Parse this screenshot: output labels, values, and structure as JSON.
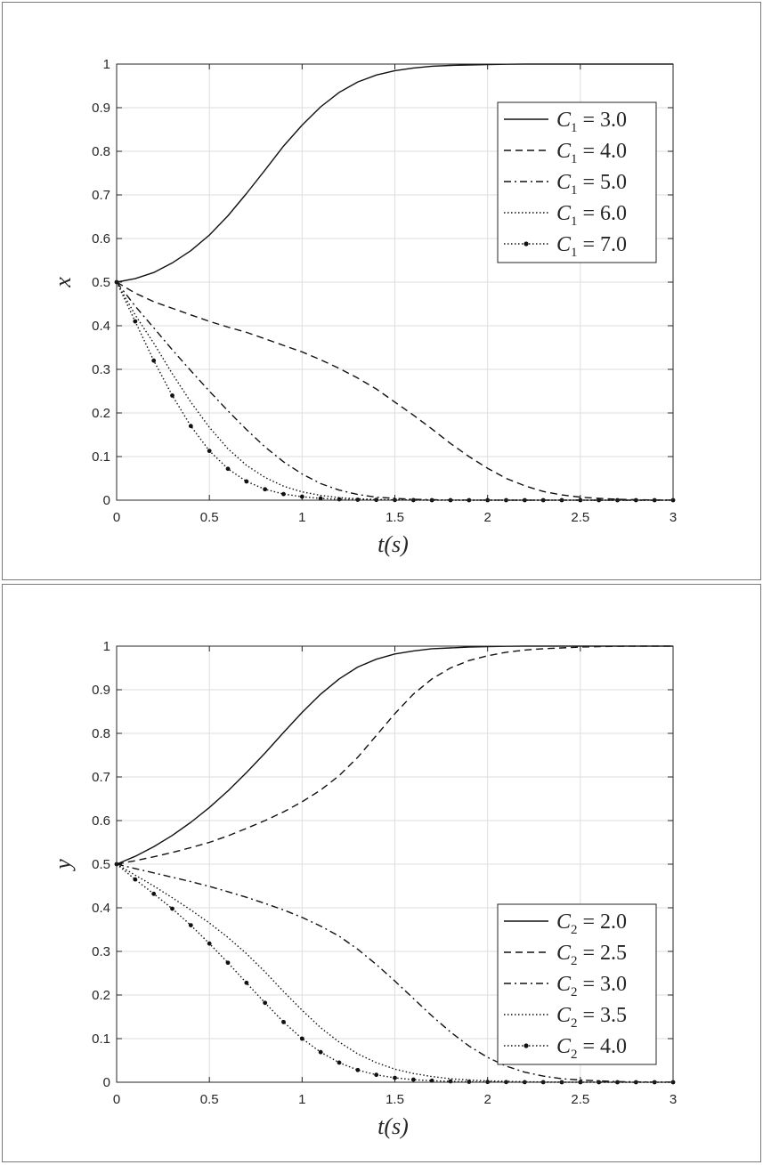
{
  "chart_data": [
    {
      "type": "line",
      "xlabel": "t(s)",
      "ylabel": "x",
      "xlim": [
        0,
        3
      ],
      "ylim": [
        0,
        1
      ],
      "grid": true,
      "legend_position": "top-right",
      "xticks": [
        "0",
        "0.5",
        "1",
        "1.5",
        "2",
        "2.5",
        "3"
      ],
      "yticks": [
        "0",
        "0.1",
        "0.2",
        "0.3",
        "0.4",
        "0.5",
        "0.6",
        "0.7",
        "0.8",
        "0.9",
        "1"
      ],
      "x": [
        0,
        0.1,
        0.2,
        0.3,
        0.4,
        0.5,
        0.6,
        0.7,
        0.8,
        0.9,
        1.0,
        1.1,
        1.2,
        1.3,
        1.4,
        1.5,
        1.6,
        1.7,
        1.8,
        1.9,
        2.0,
        2.1,
        2.2,
        2.3,
        2.4,
        2.5,
        2.6,
        2.7,
        2.8,
        2.9,
        3.0
      ],
      "series": [
        {
          "name": "C_1 = 3.0",
          "style": "solid",
          "values": [
            0.5,
            0.508,
            0.522,
            0.544,
            0.572,
            0.608,
            0.652,
            0.703,
            0.757,
            0.812,
            0.86,
            0.902,
            0.935,
            0.959,
            0.975,
            0.985,
            0.991,
            0.995,
            0.997,
            0.998,
            0.999,
            0.9995,
            1.0,
            1.0,
            1.0,
            1.0,
            1.0,
            1.0,
            1.0,
            1.0,
            1.0
          ]
        },
        {
          "name": "C_1 = 4.0",
          "style": "dashed",
          "values": [
            0.5,
            0.475,
            0.455,
            0.44,
            0.425,
            0.41,
            0.397,
            0.385,
            0.37,
            0.355,
            0.34,
            0.322,
            0.302,
            0.28,
            0.255,
            0.225,
            0.195,
            0.163,
            0.13,
            0.1,
            0.073,
            0.05,
            0.033,
            0.02,
            0.012,
            0.007,
            0.004,
            0.002,
            0.001,
            0.0005,
            0.0003
          ]
        },
        {
          "name": "C_1 = 5.0",
          "style": "dashdot",
          "values": [
            0.5,
            0.445,
            0.395,
            0.345,
            0.297,
            0.25,
            0.205,
            0.162,
            0.122,
            0.088,
            0.06,
            0.038,
            0.023,
            0.013,
            0.007,
            0.004,
            0.002,
            0.001,
            0.0005,
            0.0003,
            0.0002,
            0.0001,
            0,
            0,
            0,
            0,
            0,
            0,
            0,
            0,
            0
          ]
        },
        {
          "name": "C_1 = 6.0",
          "style": "dotted",
          "values": [
            0.5,
            0.425,
            0.36,
            0.29,
            0.225,
            0.167,
            0.118,
            0.08,
            0.052,
            0.032,
            0.019,
            0.011,
            0.006,
            0.003,
            0.0017,
            0.0009,
            0.0005,
            0.0003,
            0.0001,
            0,
            0,
            0,
            0,
            0,
            0,
            0,
            0,
            0,
            0,
            0,
            0
          ]
        },
        {
          "name": "C_1 = 7.0",
          "style": "dotted-marker",
          "values": [
            0.5,
            0.41,
            0.32,
            0.24,
            0.17,
            0.113,
            0.072,
            0.043,
            0.025,
            0.014,
            0.008,
            0.004,
            0.002,
            0.001,
            0.0006,
            0.0003,
            0.0001,
            0,
            0,
            0,
            0,
            0,
            0,
            0,
            0,
            0,
            0,
            0,
            0,
            0,
            0
          ]
        }
      ]
    },
    {
      "type": "line",
      "xlabel": "t(s)",
      "ylabel": "y",
      "xlim": [
        0,
        3
      ],
      "ylim": [
        0,
        1
      ],
      "grid": true,
      "legend_position": "bottom-right",
      "xticks": [
        "0",
        "0.5",
        "1",
        "1.5",
        "2",
        "2.5",
        "3"
      ],
      "yticks": [
        "0",
        "0.1",
        "0.2",
        "0.3",
        "0.4",
        "0.5",
        "0.6",
        "0.7",
        "0.8",
        "0.9",
        "1"
      ],
      "x": [
        0,
        0.1,
        0.2,
        0.3,
        0.4,
        0.5,
        0.6,
        0.7,
        0.8,
        0.9,
        1.0,
        1.1,
        1.2,
        1.3,
        1.4,
        1.5,
        1.6,
        1.7,
        1.8,
        1.9,
        2.0,
        2.1,
        2.2,
        2.3,
        2.4,
        2.5,
        2.6,
        2.7,
        2.8,
        2.9,
        3.0
      ],
      "series": [
        {
          "name": "C_2 = 2.0",
          "style": "solid",
          "values": [
            0.5,
            0.518,
            0.54,
            0.566,
            0.596,
            0.63,
            0.668,
            0.71,
            0.755,
            0.802,
            0.848,
            0.89,
            0.925,
            0.952,
            0.97,
            0.982,
            0.989,
            0.994,
            0.996,
            0.998,
            0.999,
            0.9995,
            1.0,
            1.0,
            1.0,
            1.0,
            1.0,
            1.0,
            1.0,
            1.0,
            1.0
          ]
        },
        {
          "name": "C_2 = 2.5",
          "style": "dashed",
          "values": [
            0.5,
            0.508,
            0.517,
            0.527,
            0.538,
            0.55,
            0.565,
            0.582,
            0.6,
            0.62,
            0.643,
            0.67,
            0.703,
            0.745,
            0.795,
            0.845,
            0.89,
            0.925,
            0.95,
            0.967,
            0.978,
            0.986,
            0.991,
            0.994,
            0.996,
            0.998,
            0.999,
            0.9995,
            1.0,
            1.0,
            1.0
          ]
        },
        {
          "name": "C_2 = 3.0",
          "style": "dashdot",
          "values": [
            0.5,
            0.49,
            0.48,
            0.47,
            0.46,
            0.449,
            0.437,
            0.424,
            0.41,
            0.395,
            0.378,
            0.358,
            0.335,
            0.305,
            0.27,
            0.232,
            0.192,
            0.152,
            0.115,
            0.083,
            0.057,
            0.037,
            0.023,
            0.014,
            0.008,
            0.005,
            0.003,
            0.0015,
            0.0008,
            0.0004,
            0.0002
          ]
        },
        {
          "name": "C_2 = 3.5",
          "style": "dotted",
          "values": [
            0.5,
            0.475,
            0.45,
            0.423,
            0.395,
            0.365,
            0.332,
            0.295,
            0.253,
            0.208,
            0.165,
            0.125,
            0.092,
            0.065,
            0.045,
            0.03,
            0.02,
            0.013,
            0.008,
            0.005,
            0.003,
            0.002,
            0.001,
            0.0006,
            0.0003,
            0.0002,
            0.0001,
            0,
            0,
            0,
            0
          ]
        },
        {
          "name": "C_2 = 4.0",
          "style": "dotted-marker",
          "values": [
            0.5,
            0.465,
            0.432,
            0.398,
            0.36,
            0.318,
            0.274,
            0.228,
            0.182,
            0.138,
            0.1,
            0.069,
            0.045,
            0.028,
            0.017,
            0.01,
            0.006,
            0.0035,
            0.002,
            0.001,
            0.0006,
            0.0003,
            0.0002,
            0.0001,
            0,
            0,
            0,
            0,
            0,
            0,
            0
          ]
        }
      ]
    }
  ]
}
